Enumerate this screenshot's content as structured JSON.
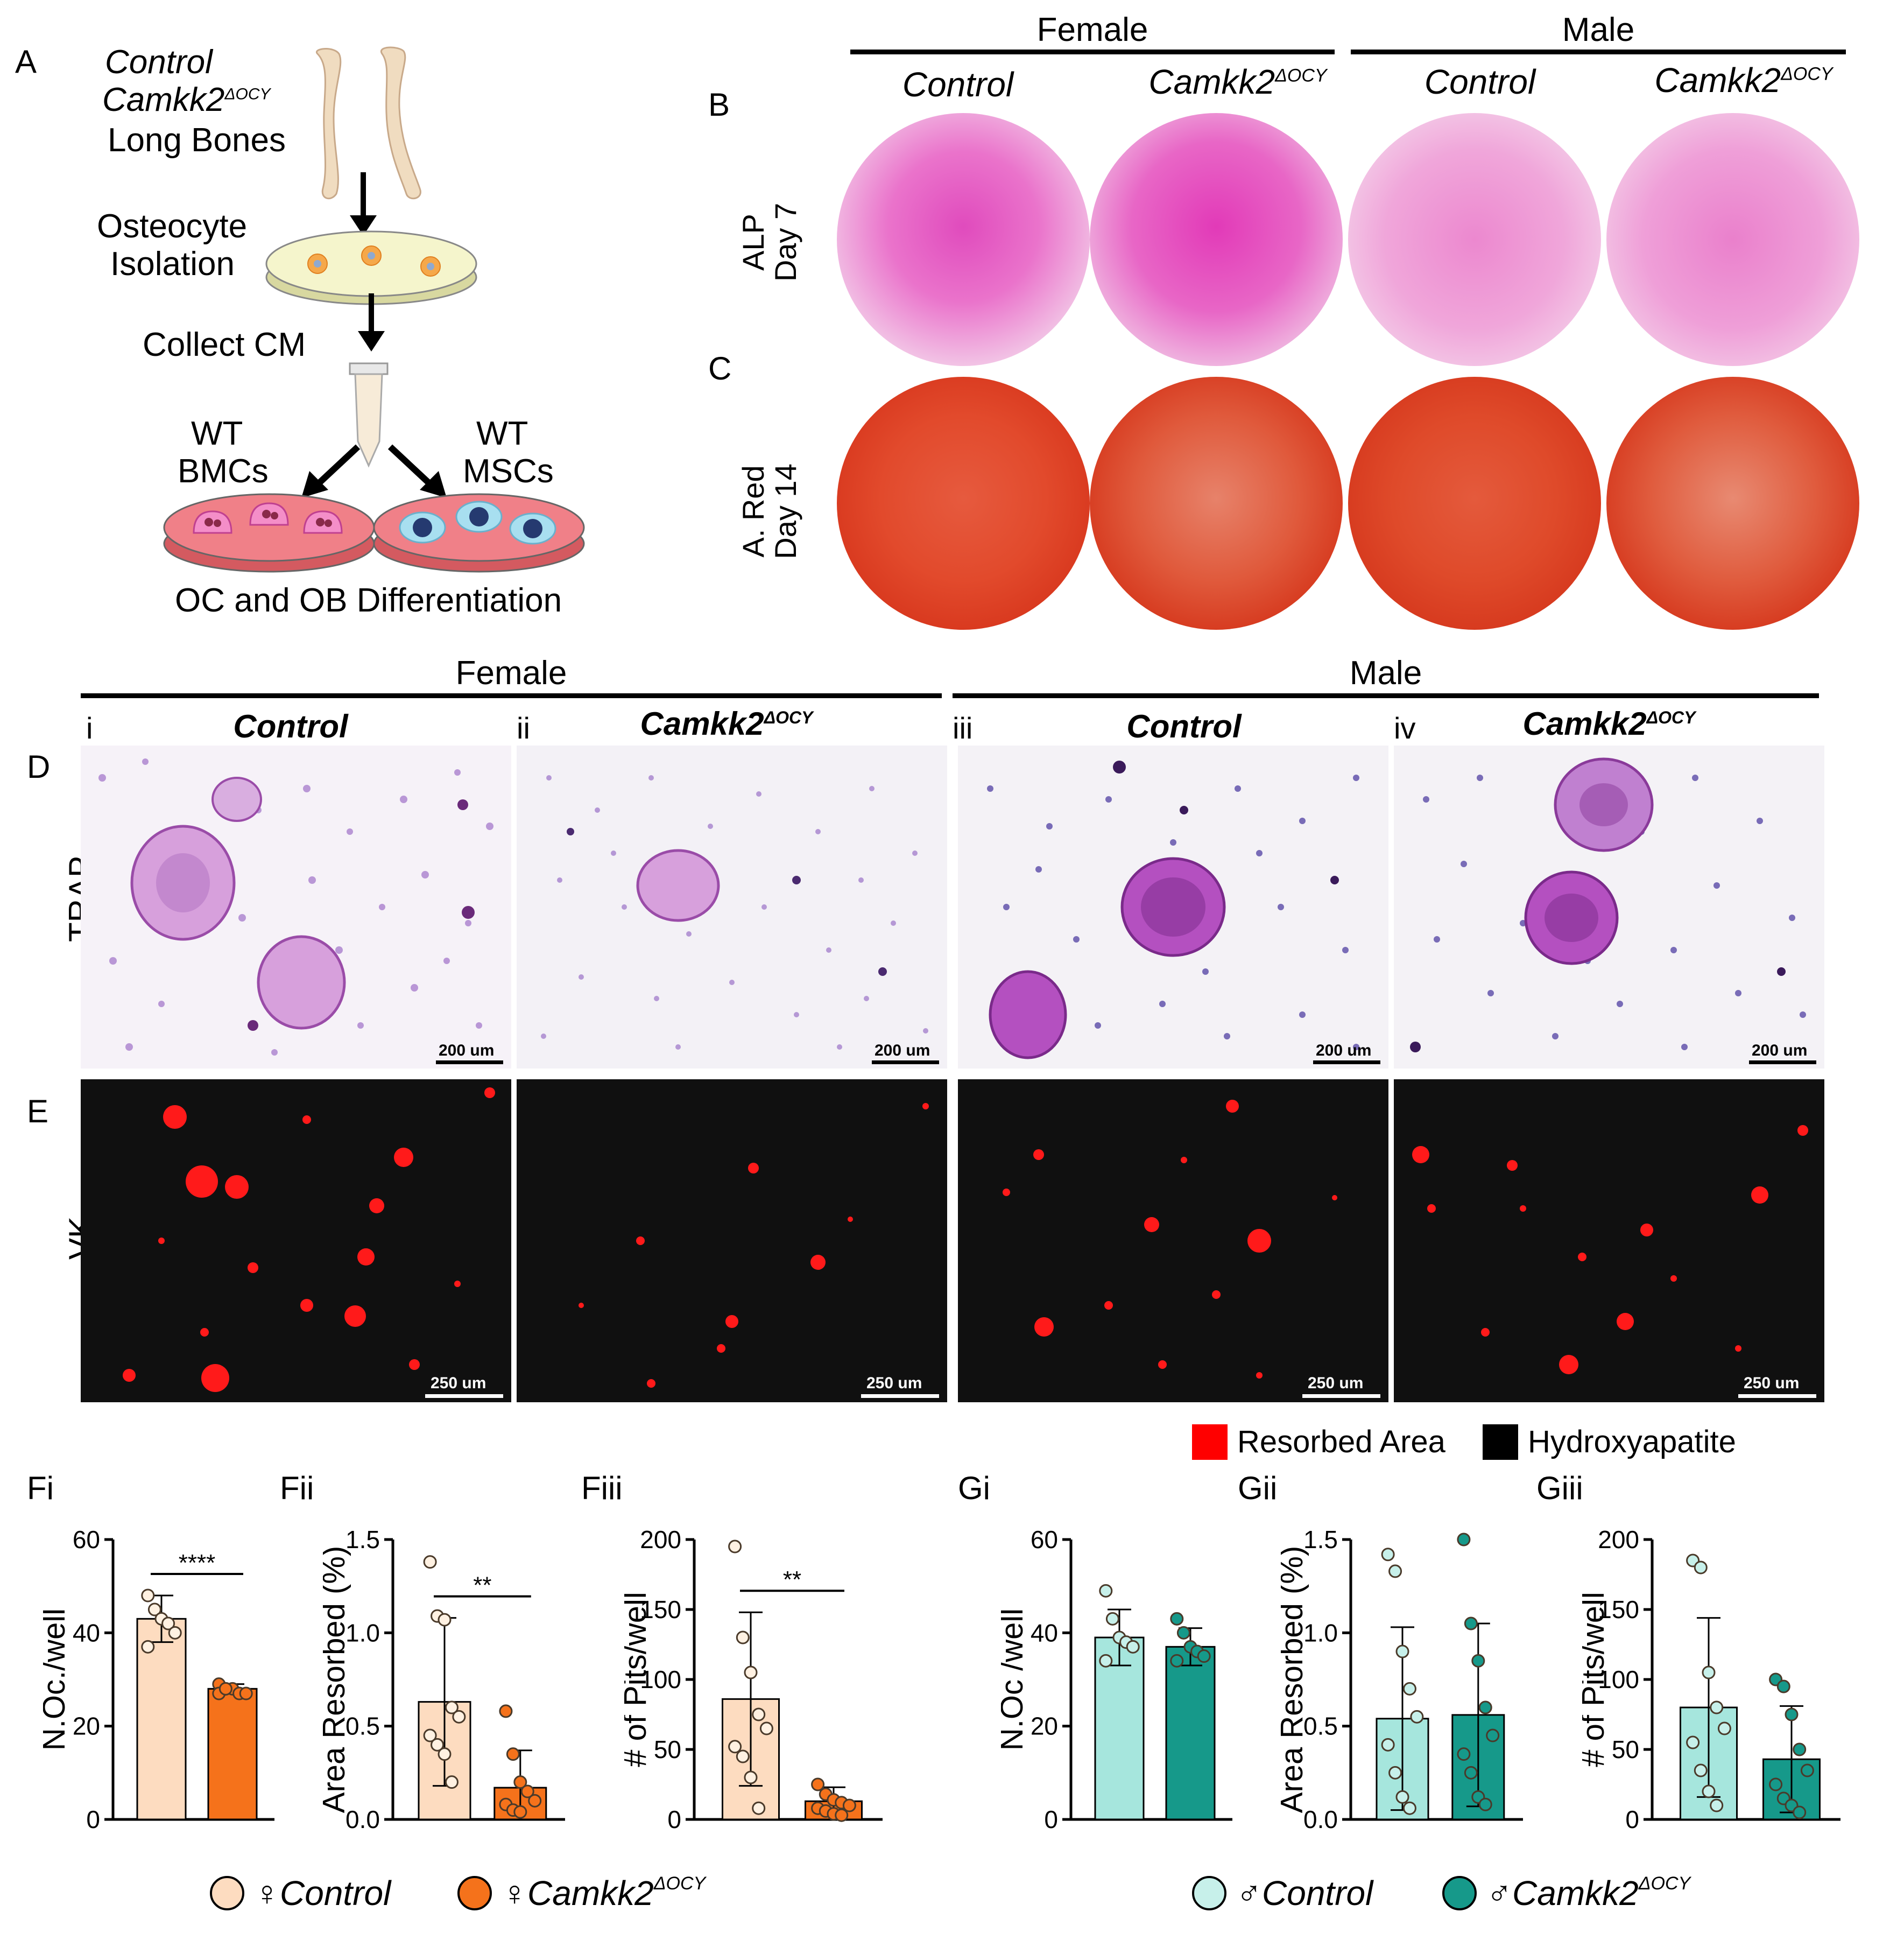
{
  "panel_letters": {
    "A": "A",
    "B": "B",
    "C": "C",
    "D": "D",
    "E": "E",
    "Fi": "Fi",
    "Fii": "Fii",
    "Fiii": "Fiii",
    "Gi": "Gi",
    "Gii": "Gii",
    "Giii": "Giii"
  },
  "schematic": {
    "line1": "Control",
    "line2_main": "Camkk2",
    "line2_sup": "ΔOCY",
    "line3": "Long Bones",
    "osteocyte1": "Osteocyte",
    "osteocyte2": "Isolation",
    "collect": "Collect CM",
    "wt_left1": "WT",
    "wt_left2": "BMCs",
    "wt_right1": "WT",
    "wt_right2": "MSCs",
    "bottom": "OC and OB Differentiation"
  },
  "top": {
    "female": "Female",
    "male": "Male",
    "groups": [
      {
        "main": "Control",
        "sup": ""
      },
      {
        "main": "Camkk2",
        "sup": "ΔOCY"
      },
      {
        "main": "Control",
        "sup": ""
      },
      {
        "main": "Camkk2",
        "sup": "ΔOCY"
      }
    ],
    "row_b_l1": "ALP",
    "row_b_l2": "Day 7",
    "row_c_l1": "A. Red",
    "row_c_l2": "Day 14"
  },
  "middle": {
    "female": "Female",
    "male": "Male",
    "romans": [
      "i",
      "ii",
      "iii",
      "iv"
    ],
    "titles": [
      {
        "main": "Control",
        "sup": ""
      },
      {
        "main": "Camkk2",
        "sup": "ΔOCY"
      },
      {
        "main": "Control",
        "sup": ""
      },
      {
        "main": "Camkk2",
        "sup": "ΔOCY"
      }
    ],
    "row_d": "TRAP",
    "row_e": "VK",
    "trap_scale": "200 um",
    "vk_scale": "250 um",
    "legend_resorbed": "Resorbed Area",
    "legend_hydroxy": "Hydroxyapatite",
    "colors": {
      "resorbed": "#ff0000",
      "hydroxy": "#000000"
    }
  },
  "chart_data": [
    {
      "id": "Fi",
      "type": "bar",
      "ylabel": "N.Oc./well",
      "ylim": [
        0,
        60
      ],
      "yticks": [
        "0",
        "20",
        "40",
        "60"
      ],
      "categories": [
        "♀Control",
        "♀Camkk2ΔOCY"
      ],
      "values": [
        43,
        28
      ],
      "sd": [
        5,
        1
      ],
      "sig": "****",
      "points": [
        [
          48,
          45,
          43,
          42,
          40,
          37
        ],
        [
          29,
          28,
          28,
          27,
          27,
          27,
          28
        ]
      ],
      "colors": [
        "#fddcc0",
        "#f5721b"
      ],
      "point_colors": [
        "#fff1e2",
        "#f5721b"
      ]
    },
    {
      "id": "Fii",
      "type": "bar",
      "ylabel": "Area Resorbed (%)",
      "ylim": [
        0,
        1.5
      ],
      "yticks": [
        "0.0",
        "0.5",
        "1.0",
        "1.5"
      ],
      "categories": [
        "♀Control",
        "♀Camkk2ΔOCY"
      ],
      "values": [
        0.63,
        0.17
      ],
      "sd": [
        0.45,
        0.2
      ],
      "sig": "**",
      "points": [
        [
          1.38,
          1.09,
          1.07,
          0.6,
          0.55,
          0.45,
          0.4,
          0.35,
          0.2
        ],
        [
          0.58,
          0.35,
          0.2,
          0.15,
          0.1,
          0.08,
          0.05,
          0.04
        ]
      ],
      "colors": [
        "#fddcc0",
        "#f5721b"
      ],
      "point_colors": [
        "#fff1e2",
        "#f5721b"
      ]
    },
    {
      "id": "Fiii",
      "type": "bar",
      "ylabel": "# of Pits/well",
      "ylim": [
        0,
        200
      ],
      "yticks": [
        "0",
        "50",
        "100",
        "150",
        "200"
      ],
      "categories": [
        "♀Control",
        "♀Camkk2ΔOCY"
      ],
      "values": [
        86,
        13
      ],
      "sd": [
        62,
        10
      ],
      "sig": "**",
      "points": [
        [
          195,
          130,
          105,
          75,
          65,
          52,
          45,
          30,
          8
        ],
        [
          25,
          18,
          14,
          12,
          10,
          8,
          6,
          4,
          3
        ]
      ],
      "colors": [
        "#fddcc0",
        "#f5721b"
      ],
      "point_colors": [
        "#fff1e2",
        "#f5721b"
      ]
    },
    {
      "id": "Gi",
      "type": "bar",
      "ylabel": "N.Oc /well",
      "ylim": [
        0,
        60
      ],
      "yticks": [
        "0",
        "20",
        "40",
        "60"
      ],
      "categories": [
        "♂Control",
        "♂Camkk2ΔOCY"
      ],
      "values": [
        39,
        37
      ],
      "sd": [
        6,
        4
      ],
      "sig": "",
      "points": [
        [
          49,
          43,
          39,
          38,
          37,
          34
        ],
        [
          43,
          40,
          37,
          36,
          35,
          34
        ]
      ],
      "colors": [
        "#a6e6dd",
        "#16998a"
      ],
      "point_colors": [
        "#c7f0ea",
        "#16998a"
      ]
    },
    {
      "id": "Gii",
      "type": "bar",
      "ylabel": "Area Resorbed (%)",
      "ylim": [
        0,
        1.5
      ],
      "yticks": [
        "0.0",
        "0.5",
        "1.0",
        "1.5"
      ],
      "categories": [
        "♂Control",
        "♂Camkk2ΔOCY"
      ],
      "values": [
        0.54,
        0.56
      ],
      "sd": [
        0.49,
        0.49
      ],
      "sig": "",
      "points": [
        [
          1.42,
          1.33,
          0.9,
          0.7,
          0.55,
          0.4,
          0.25,
          0.12,
          0.06
        ],
        [
          1.5,
          1.05,
          0.85,
          0.6,
          0.45,
          0.35,
          0.25,
          0.12,
          0.08
        ]
      ],
      "colors": [
        "#a6e6dd",
        "#16998a"
      ],
      "point_colors": [
        "#c7f0ea",
        "#16998a"
      ]
    },
    {
      "id": "Giii",
      "type": "bar",
      "ylabel": "# of Pits/well",
      "ylim": [
        0,
        200
      ],
      "yticks": [
        "0",
        "50",
        "100",
        "150",
        "200"
      ],
      "categories": [
        "♂Control",
        "♂Camkk2ΔOCY"
      ],
      "values": [
        80,
        43
      ],
      "sd": [
        64,
        38
      ],
      "sig": "",
      "points": [
        [
          185,
          180,
          105,
          80,
          65,
          55,
          35,
          20,
          10
        ],
        [
          100,
          95,
          75,
          50,
          35,
          25,
          15,
          10,
          5
        ]
      ],
      "colors": [
        "#a6e6dd",
        "#16998a"
      ],
      "point_colors": [
        "#c7f0ea",
        "#16998a"
      ]
    }
  ],
  "bottom_legend": {
    "f_control": "♀Control",
    "f_camkk2_main": "♀Camkk2",
    "f_camkk2_sup": "ΔOCY",
    "m_control": "♂Control",
    "m_camkk2_main": "♂Camkk2",
    "m_camkk2_sup": "ΔOCY",
    "colors": {
      "f_control": "#fddcc0",
      "f_camkk2": "#f5721b",
      "m_control": "#c7f0ea",
      "m_camkk2": "#16998a"
    }
  }
}
